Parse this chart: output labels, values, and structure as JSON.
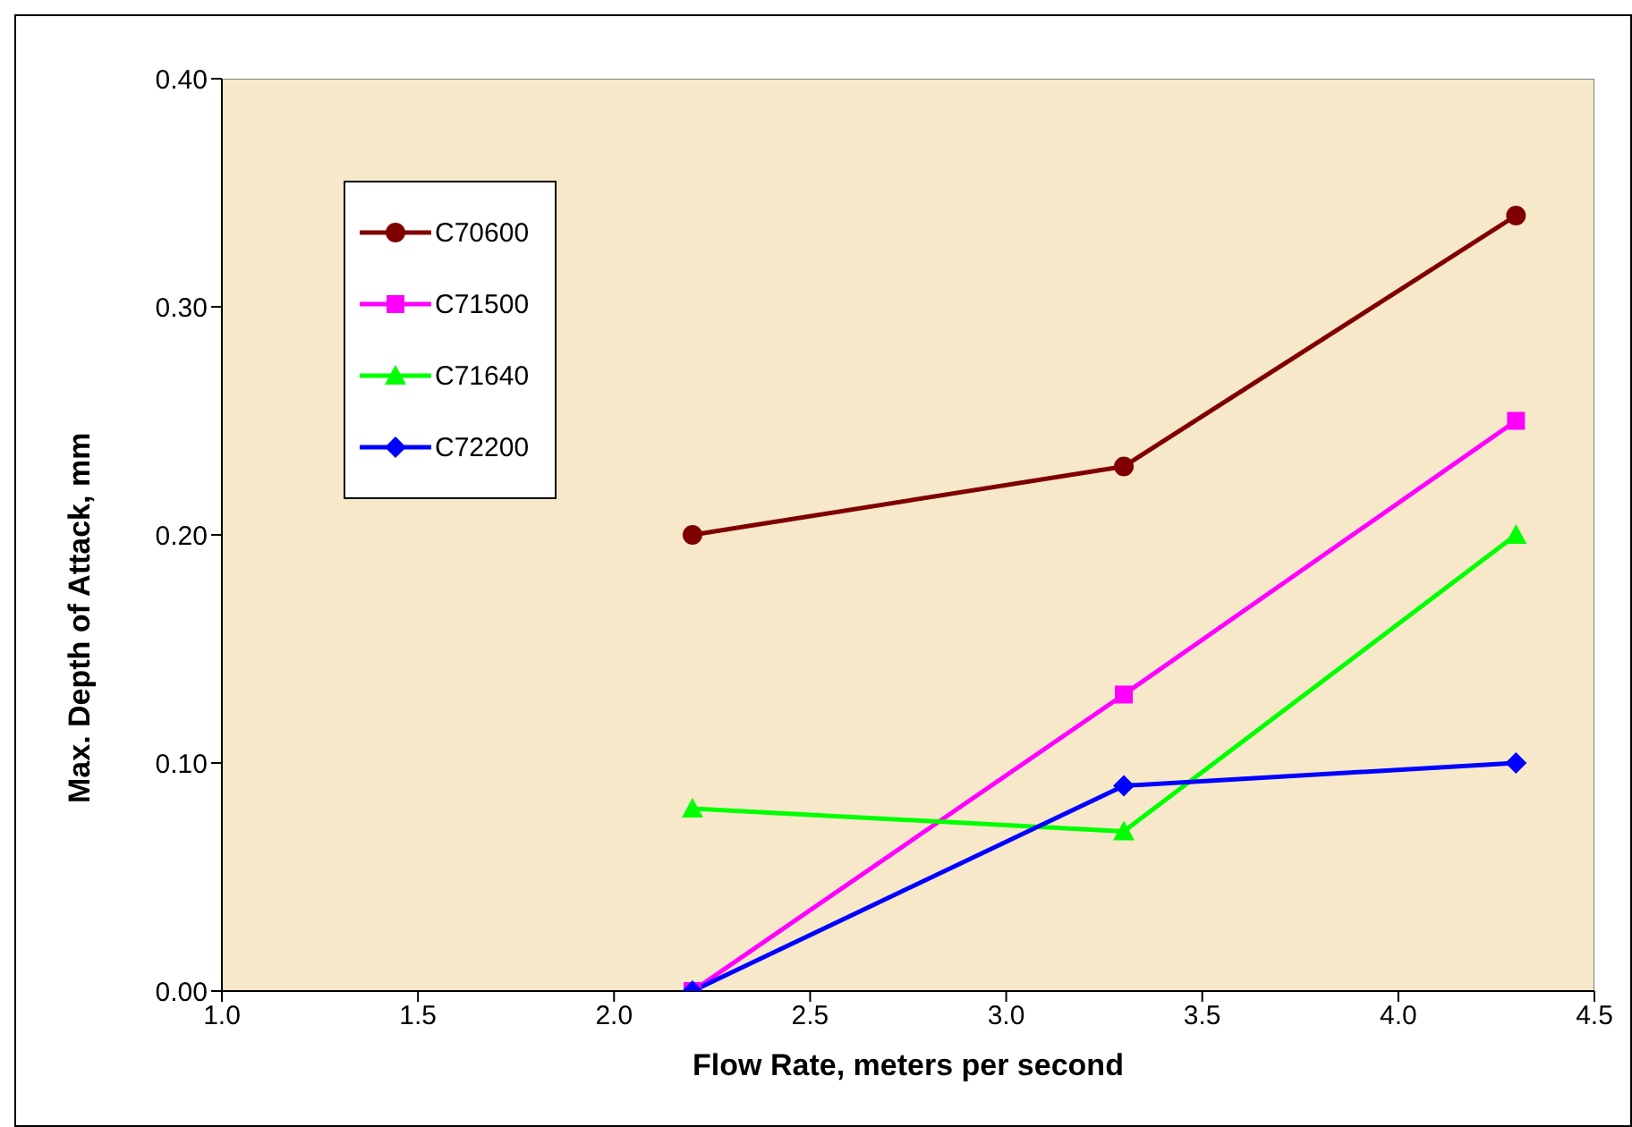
{
  "chart_data": {
    "type": "line",
    "xlabel": "Flow Rate, meters per second",
    "ylabel": "Max. Depth of Attack, mm",
    "x": [
      2.2,
      3.3,
      4.3
    ],
    "series": [
      {
        "name": "C70600",
        "color": "#800000",
        "marker": "circle",
        "values": [
          0.2,
          0.23,
          0.34
        ]
      },
      {
        "name": "C71500",
        "color": "#ff00ff",
        "marker": "square",
        "values": [
          0,
          0.13,
          0.25
        ]
      },
      {
        "name": "C71640",
        "color": "#00ff00",
        "marker": "triangle",
        "values": [
          0.08,
          0.07,
          0.2
        ]
      },
      {
        "name": "C72200",
        "color": "#0000ff",
        "marker": "diamond",
        "values": [
          0,
          0.09,
          0.1
        ]
      }
    ],
    "xlim": [
      1.0,
      4.5
    ],
    "xticks": [
      {
        "value": 1,
        "label": "1.0"
      },
      {
        "value": 1.5,
        "label": "1.5"
      },
      {
        "value": 2,
        "label": "2.0"
      },
      {
        "value": 2.5,
        "label": "2.5"
      },
      {
        "value": 3,
        "label": "3.0"
      },
      {
        "value": 3.5,
        "label": "3.5"
      },
      {
        "value": 4,
        "label": "4.0"
      },
      {
        "value": 4.5,
        "label": "4.5"
      }
    ],
    "ylim": [
      0,
      0.4
    ],
    "yticks": [
      {
        "value": 0,
        "label": "0.00"
      },
      {
        "value": 0.1,
        "label": "0.10"
      },
      {
        "value": 0.2,
        "label": "0.20"
      },
      {
        "value": 0.3,
        "label": "0.30"
      },
      {
        "value": 0.4,
        "label": "0.40"
      }
    ],
    "grid": false,
    "legend": "top left",
    "line_style": "solid"
  }
}
